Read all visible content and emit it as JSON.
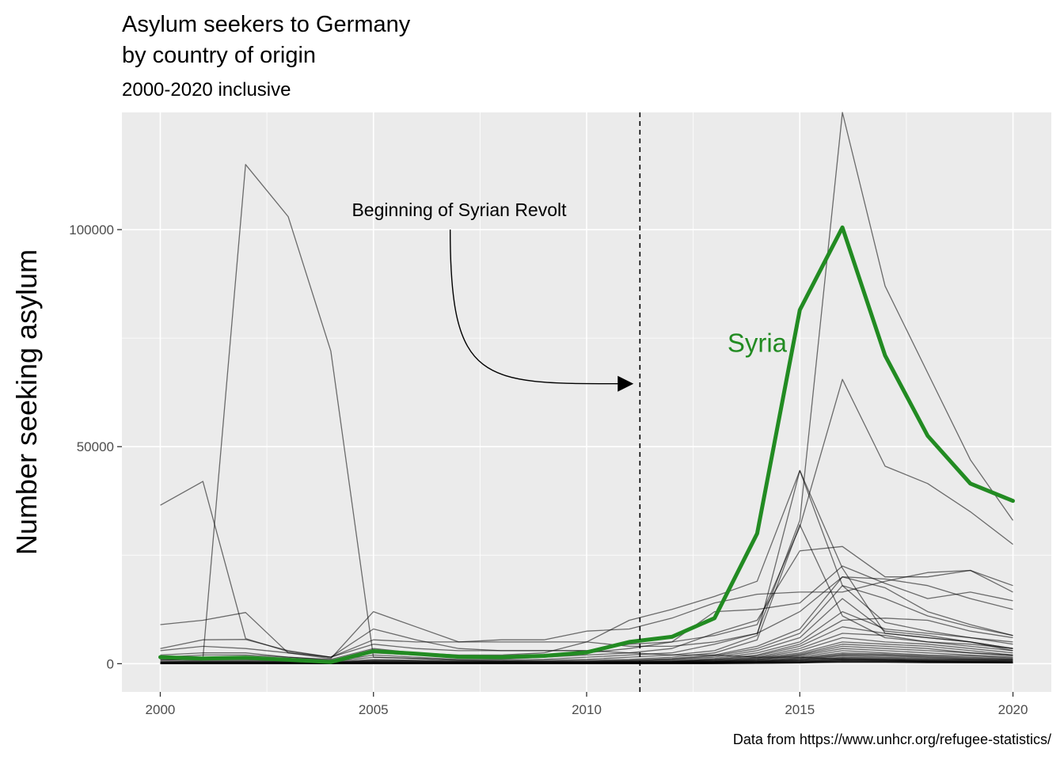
{
  "chart_data": {
    "type": "line",
    "title_line1": "Asylum seekers to Germany",
    "title_line2": "by country of origin",
    "subtitle": "2000-2020 inclusive",
    "xlabel": "",
    "ylabel": "Number seeking asylum",
    "caption": "Data from https://www.unhcr.org/refugee-statistics/",
    "xlim": [
      1999.1,
      2020.9
    ],
    "ylim": [
      -6500,
      127000
    ],
    "x_ticks": [
      2000,
      2005,
      2010,
      2015,
      2020
    ],
    "x_tick_labels": [
      "2000",
      "2005",
      "2010",
      "2015",
      "2020"
    ],
    "y_ticks": [
      0,
      50000,
      100000
    ],
    "y_tick_labels": [
      "0",
      "50000",
      "100000"
    ],
    "grid": true,
    "annotation": {
      "text": "Beginning of Syrian Revolt",
      "vline_x": 2011.25,
      "arrow_from": [
        2006.8,
        100000
      ],
      "arrow_to": [
        2011.1,
        64500
      ]
    },
    "highlight": {
      "name": "Syria",
      "label": "Syria",
      "label_pos": [
        2014.0,
        74000
      ],
      "color": "#228b22",
      "x": [
        2000,
        2001,
        2002,
        2003,
        2004,
        2005,
        2006,
        2007,
        2008,
        2009,
        2010,
        2011,
        2012,
        2013,
        2014,
        2015,
        2016,
        2017,
        2018,
        2019,
        2020
      ],
      "values": [
        1500,
        1200,
        1400,
        900,
        400,
        2900,
        2300,
        1600,
        1500,
        1800,
        2600,
        5000,
        6200,
        10500,
        30000,
        81500,
        100500,
        71000,
        52500,
        41500,
        37500
      ]
    },
    "x": [
      2000,
      2001,
      2002,
      2003,
      2004,
      2005,
      2006,
      2007,
      2008,
      2009,
      2010,
      2011,
      2012,
      2013,
      2014,
      2015,
      2016,
      2017,
      2018,
      2019,
      2020
    ],
    "series": [
      {
        "values": [
          36500,
          42000,
          5800,
          2800,
          1500,
          8000,
          5500,
          3500,
          3000,
          3000,
          3000,
          2500,
          2000,
          2000,
          1500,
          1500,
          1000,
          800,
          600,
          500,
          400
        ]
      },
      {
        "values": [
          800,
          1200,
          115000,
          103000,
          72000,
          1500,
          1200,
          800,
          600,
          500,
          400,
          400,
          300,
          300,
          300,
          300,
          300,
          300,
          200,
          200,
          200
        ]
      },
      {
        "values": [
          9000,
          10000,
          11800,
          2500,
          1200,
          12000,
          8500,
          5000,
          5000,
          5000,
          5000,
          4000,
          4000,
          5000,
          7000,
          33000,
          127000,
          87000,
          67000,
          47000,
          33000
        ]
      },
      {
        "values": [
          3500,
          5500,
          5600,
          3000,
          1500,
          5500,
          5000,
          5000,
          5500,
          5500,
          7500,
          8000,
          10500,
          14000,
          16000,
          16500,
          16500,
          19000,
          21000,
          21500,
          16500
        ]
      },
      {
        "values": [
          3000,
          4000,
          3500,
          2500,
          1500,
          4500,
          3500,
          3000,
          3000,
          3000,
          3000,
          4500,
          5000,
          6500,
          9000,
          31500,
          65500,
          45500,
          41500,
          35000,
          27500
        ]
      },
      {
        "values": [
          2000,
          2500,
          2500,
          1500,
          1000,
          3500,
          2500,
          2000,
          2000,
          2500,
          5000,
          10000,
          12500,
          15500,
          19000,
          44500,
          18000,
          15000,
          11000,
          8500,
          6500
        ]
      },
      {
        "values": [
          1500,
          2000,
          2000,
          1500,
          800,
          2500,
          2000,
          1500,
          1500,
          2000,
          2500,
          3500,
          5000,
          12000,
          12500,
          14000,
          22500,
          18500,
          15000,
          16500,
          14500
        ]
      },
      {
        "values": [
          1000,
          1500,
          1500,
          1000,
          500,
          2000,
          1500,
          1000,
          1000,
          1500,
          2000,
          2500,
          3500,
          7000,
          10000,
          26000,
          27000,
          20000,
          20000,
          21500,
          18000
        ]
      },
      {
        "values": [
          800,
          1000,
          1000,
          800,
          400,
          1500,
          1200,
          800,
          800,
          1000,
          1500,
          2000,
          2500,
          4500,
          7000,
          12000,
          20000,
          19500,
          18000,
          15000,
          12500
        ]
      },
      {
        "values": [
          500,
          800,
          800,
          600,
          300,
          1000,
          800,
          600,
          600,
          800,
          1000,
          1500,
          2000,
          3000,
          6500,
          44500,
          22000,
          7000,
          6000,
          5000,
          3000
        ]
      },
      {
        "values": [
          400,
          600,
          600,
          500,
          300,
          800,
          700,
          500,
          500,
          600,
          800,
          1000,
          1500,
          2500,
          5500,
          32000,
          11000,
          6000,
          5000,
          4500,
          3500
        ]
      },
      {
        "values": [
          300,
          500,
          500,
          400,
          200,
          700,
          600,
          400,
          400,
          500,
          600,
          800,
          1200,
          2000,
          4000,
          8000,
          20000,
          17500,
          12000,
          9000,
          6500
        ]
      },
      {
        "values": [
          300,
          400,
          400,
          300,
          200,
          600,
          500,
          400,
          400,
          400,
          500,
          700,
          1000,
          1800,
          3500,
          7000,
          18000,
          9500,
          7500,
          6000,
          4500
        ]
      },
      {
        "values": [
          200,
          300,
          300,
          300,
          200,
          500,
          400,
          300,
          300,
          300,
          400,
          600,
          900,
          1500,
          3000,
          6000,
          15000,
          7500,
          6500,
          5000,
          3500
        ]
      },
      {
        "values": [
          200,
          300,
          300,
          200,
          100,
          400,
          300,
          300,
          300,
          300,
          400,
          500,
          700,
          1200,
          2500,
          5000,
          12000,
          8000,
          7000,
          6000,
          5000
        ]
      },
      {
        "values": [
          200,
          200,
          200,
          200,
          100,
          300,
          300,
          200,
          200,
          200,
          300,
          400,
          600,
          1000,
          2000,
          4500,
          10000,
          10500,
          10000,
          7500,
          6000
        ]
      },
      {
        "values": [
          100,
          200,
          200,
          200,
          100,
          300,
          200,
          200,
          200,
          200,
          300,
          400,
          500,
          900,
          1800,
          4000,
          8500,
          7000,
          6000,
          5000,
          3500
        ]
      },
      {
        "values": [
          100,
          200,
          200,
          100,
          100,
          200,
          200,
          200,
          200,
          200,
          200,
          300,
          500,
          800,
          1500,
          3500,
          7000,
          6500,
          5000,
          4000,
          3000
        ]
      },
      {
        "values": [
          100,
          100,
          100,
          100,
          100,
          200,
          200,
          100,
          100,
          200,
          200,
          300,
          400,
          700,
          1300,
          3000,
          6000,
          5000,
          4500,
          3500,
          2500
        ]
      },
      {
        "values": [
          100,
          100,
          100,
          100,
          50,
          200,
          100,
          100,
          100,
          100,
          200,
          300,
          400,
          600,
          1200,
          2500,
          5000,
          4500,
          4000,
          3000,
          2000
        ]
      },
      {
        "values": [
          100,
          100,
          100,
          100,
          50,
          100,
          100,
          100,
          100,
          100,
          200,
          200,
          300,
          500,
          1000,
          2200,
          4500,
          4000,
          3500,
          2500,
          2000
        ]
      },
      {
        "values": [
          50,
          100,
          100,
          100,
          50,
          100,
          100,
          100,
          100,
          100,
          100,
          200,
          300,
          500,
          900,
          2000,
          4000,
          3500,
          3000,
          2500,
          1800
        ]
      },
      {
        "values": [
          50,
          100,
          100,
          50,
          50,
          100,
          100,
          100,
          100,
          100,
          100,
          200,
          300,
          400,
          800,
          1800,
          3500,
          3000,
          2500,
          2000,
          1500
        ]
      },
      {
        "values": [
          50,
          50,
          50,
          50,
          50,
          100,
          100,
          100,
          100,
          100,
          100,
          200,
          200,
          400,
          700,
          1500,
          3000,
          2500,
          2000,
          1800,
          1300
        ]
      },
      {
        "values": [
          50,
          50,
          50,
          50,
          0,
          100,
          100,
          50,
          50,
          100,
          100,
          100,
          200,
          300,
          600,
          1300,
          2500,
          2200,
          1800,
          1500,
          1100
        ]
      },
      {
        "values": [
          50,
          50,
          50,
          50,
          0,
          50,
          50,
          50,
          50,
          50,
          100,
          100,
          200,
          300,
          500,
          1200,
          2200,
          2000,
          1600,
          1300,
          1000
        ]
      },
      {
        "values": [
          0,
          50,
          50,
          50,
          0,
          50,
          50,
          50,
          50,
          50,
          100,
          100,
          200,
          300,
          500,
          1000,
          2000,
          1800,
          1400,
          1100,
          900
        ]
      },
      {
        "values": [
          0,
          50,
          50,
          0,
          0,
          50,
          50,
          50,
          50,
          50,
          50,
          100,
          100,
          200,
          400,
          900,
          1800,
          1500,
          1200,
          1000,
          800
        ]
      },
      {
        "values": [
          0,
          0,
          50,
          0,
          0,
          50,
          50,
          50,
          50,
          50,
          50,
          100,
          100,
          200,
          400,
          800,
          1500,
          1300,
          1000,
          900,
          700
        ]
      },
      {
        "values": [
          0,
          0,
          0,
          0,
          0,
          50,
          50,
          0,
          0,
          50,
          50,
          100,
          100,
          200,
          300,
          700,
          1300,
          1100,
          900,
          800,
          600
        ]
      },
      {
        "values": [
          0,
          0,
          0,
          0,
          0,
          0,
          0,
          0,
          0,
          0,
          50,
          50,
          100,
          100,
          300,
          600,
          1200,
          1000,
          800,
          700,
          500
        ]
      },
      {
        "values": [
          0,
          0,
          0,
          0,
          0,
          0,
          0,
          0,
          0,
          0,
          50,
          50,
          100,
          100,
          200,
          500,
          1000,
          900,
          700,
          600,
          400
        ]
      },
      {
        "values": [
          0,
          0,
          0,
          0,
          0,
          0,
          0,
          0,
          0,
          0,
          0,
          50,
          50,
          100,
          200,
          400,
          900,
          800,
          600,
          500,
          400
        ]
      },
      {
        "values": [
          0,
          0,
          0,
          0,
          0,
          0,
          0,
          0,
          0,
          0,
          0,
          50,
          50,
          100,
          150,
          350,
          800,
          700,
          500,
          400,
          300
        ]
      },
      {
        "values": [
          0,
          0,
          0,
          0,
          0,
          0,
          0,
          0,
          0,
          0,
          0,
          0,
          50,
          50,
          150,
          300,
          700,
          600,
          450,
          350,
          300
        ]
      },
      {
        "values": [
          0,
          0,
          0,
          0,
          0,
          0,
          0,
          0,
          0,
          0,
          0,
          0,
          50,
          50,
          100,
          250,
          600,
          500,
          400,
          300,
          250
        ]
      },
      {
        "values": [
          0,
          0,
          0,
          0,
          0,
          0,
          0,
          0,
          0,
          0,
          0,
          0,
          0,
          50,
          100,
          200,
          500,
          450,
          350,
          300,
          200
        ]
      },
      {
        "values": [
          0,
          0,
          0,
          0,
          0,
          0,
          0,
          0,
          0,
          0,
          0,
          0,
          0,
          50,
          80,
          150,
          400,
          350,
          300,
          250,
          200
        ]
      }
    ]
  }
}
